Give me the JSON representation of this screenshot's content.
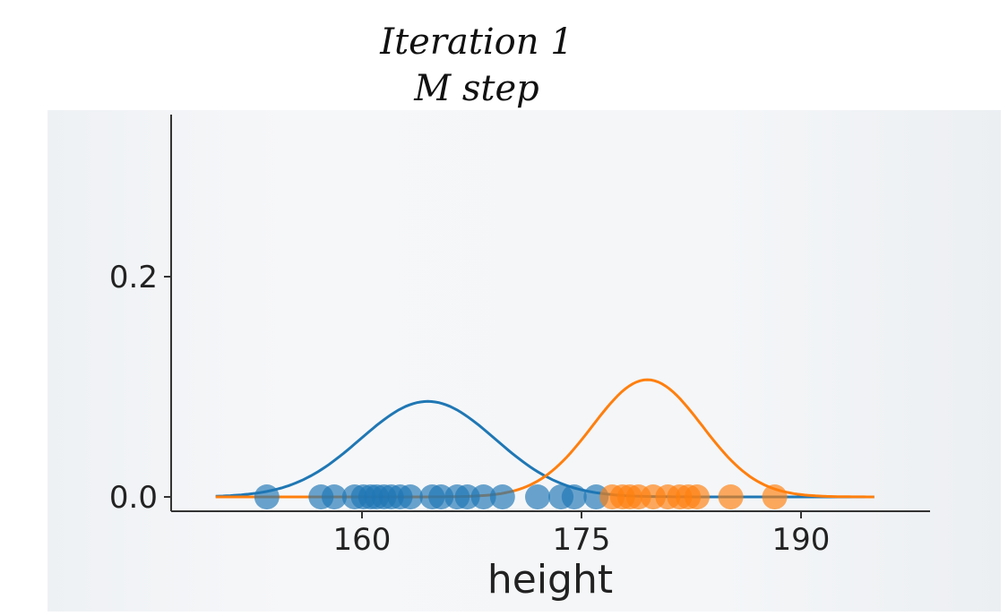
{
  "annotation": {
    "line1": "Iteration 1",
    "line2": "M step"
  },
  "chart_data": {
    "type": "line",
    "title": "",
    "xlabel": "height",
    "ylabel": "",
    "xlim": [
      150,
      195
    ],
    "ylim": [
      0,
      0.3
    ],
    "x_ticks": [
      160,
      175,
      190
    ],
    "y_ticks": [
      0.0,
      0.2
    ],
    "x_tick_labels": [
      "160",
      "175",
      "190"
    ],
    "y_tick_labels": [
      "0.0",
      "0.2"
    ],
    "grid": false,
    "colors": {
      "series1": "#1f77b4",
      "series2": "#ff7f0e",
      "axis": "#333333"
    },
    "series": [
      {
        "kind": "gaussian",
        "mean": 164.5,
        "std": 4.6,
        "weight": 1.0,
        "color": "#1f77b4"
      },
      {
        "kind": "gaussian",
        "mean": 179.5,
        "std": 3.75,
        "weight": 1.0,
        "color": "#ff7f0e"
      }
    ],
    "points": [
      {
        "x": 153.5,
        "c": 0
      },
      {
        "x": 157.2,
        "c": 0
      },
      {
        "x": 158.1,
        "c": 0
      },
      {
        "x": 159.5,
        "c": 0
      },
      {
        "x": 160.1,
        "c": 0
      },
      {
        "x": 160.6,
        "c": 0
      },
      {
        "x": 161.0,
        "c": 0
      },
      {
        "x": 161.5,
        "c": 0
      },
      {
        "x": 162.0,
        "c": 0
      },
      {
        "x": 162.6,
        "c": 0
      },
      {
        "x": 163.3,
        "c": 0
      },
      {
        "x": 164.8,
        "c": 0
      },
      {
        "x": 165.4,
        "c": 0
      },
      {
        "x": 166.5,
        "c": 0
      },
      {
        "x": 167.2,
        "c": 0
      },
      {
        "x": 168.3,
        "c": 0
      },
      {
        "x": 169.6,
        "c": 0
      },
      {
        "x": 172.0,
        "c": 0
      },
      {
        "x": 173.6,
        "c": 0
      },
      {
        "x": 174.5,
        "c": 0
      },
      {
        "x": 176.0,
        "c": 0
      },
      {
        "x": 177.1,
        "c": 1
      },
      {
        "x": 177.8,
        "c": 1
      },
      {
        "x": 178.3,
        "c": 1
      },
      {
        "x": 178.9,
        "c": 1
      },
      {
        "x": 179.9,
        "c": 1
      },
      {
        "x": 180.9,
        "c": 1
      },
      {
        "x": 181.7,
        "c": 1
      },
      {
        "x": 182.3,
        "c": 1
      },
      {
        "x": 182.9,
        "c": 1
      },
      {
        "x": 185.2,
        "c": 1
      },
      {
        "x": 188.2,
        "c": 1
      }
    ]
  }
}
